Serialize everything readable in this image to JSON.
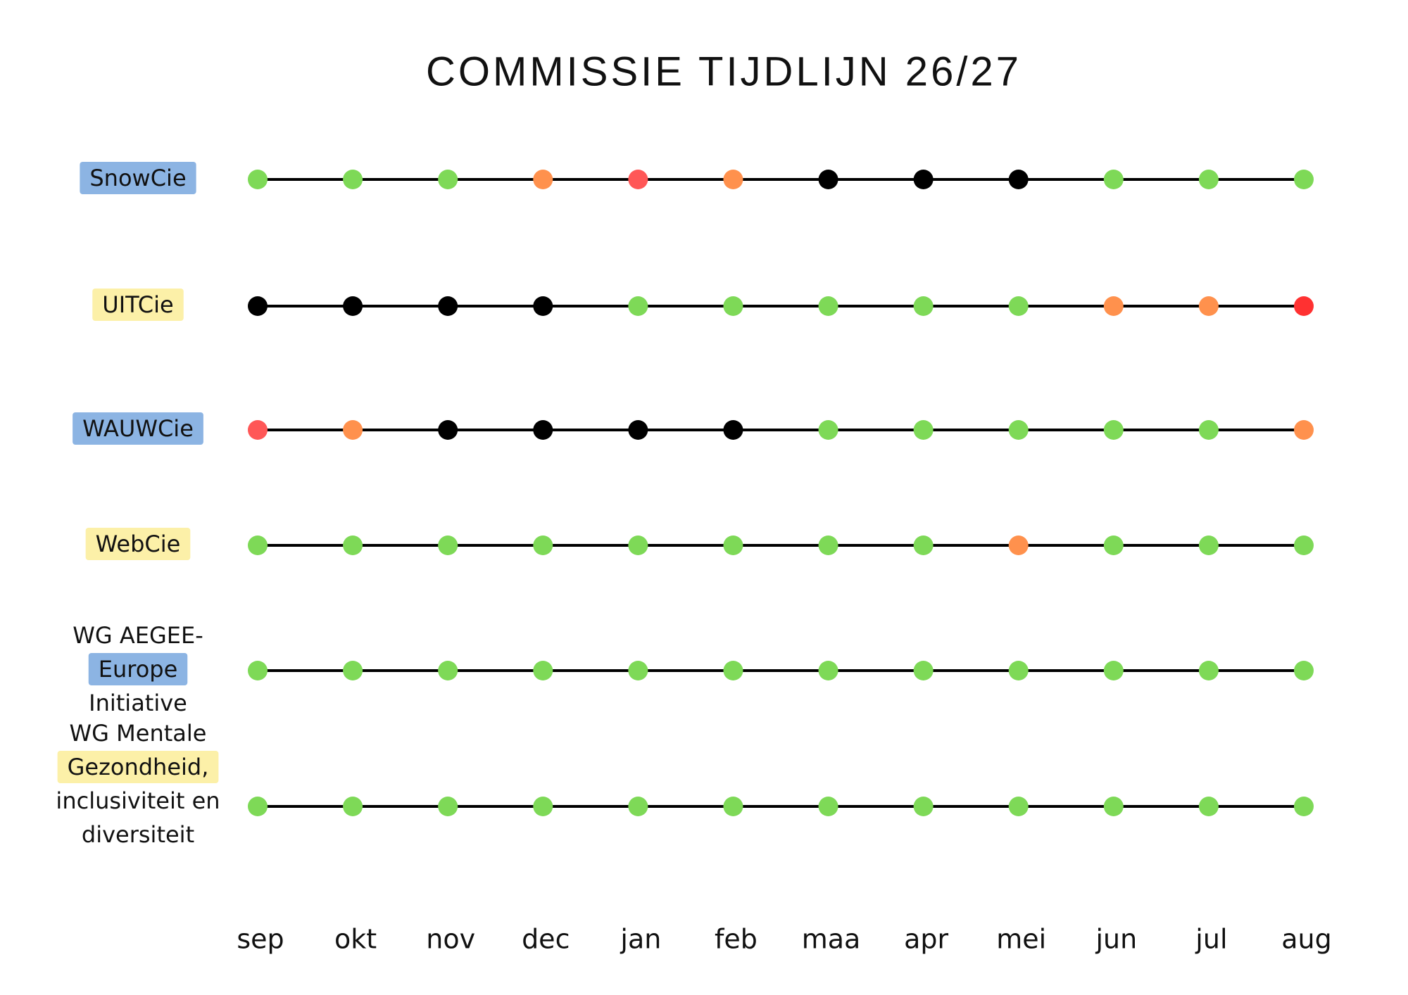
{
  "title": "COMMISSIE TIJDLIJN 26/27",
  "months": [
    "sep",
    "okt",
    "nov",
    "dec",
    "jan",
    "feb",
    "maa",
    "apr",
    "mei",
    "jun",
    "jul",
    "aug"
  ],
  "rows": [
    {
      "label_lines": [
        "SnowCie"
      ],
      "highlight": "#8cb4e3",
      "dots": [
        "#7ed957",
        "#7ed957",
        "#7ed957",
        "#ff914d",
        "#ff5757",
        "#ff914d",
        "#000000",
        "#000000",
        "#000000",
        "#7ed957",
        "#7ed957",
        "#7ed957"
      ]
    },
    {
      "label_lines": [
        "UITCie"
      ],
      "highlight": "#fcf0a8",
      "dots": [
        "#000000",
        "#000000",
        "#000000",
        "#000000",
        "#7ed957",
        "#7ed957",
        "#7ed957",
        "#7ed957",
        "#7ed957",
        "#ff914d",
        "#ff914d",
        "#ff3131"
      ]
    },
    {
      "label_lines": [
        "WAUWCie"
      ],
      "highlight": "#8cb4e3",
      "dots": [
        "#ff5757",
        "#ff914d",
        "#000000",
        "#000000",
        "#000000",
        "#000000",
        "#7ed957",
        "#7ed957",
        "#7ed957",
        "#7ed957",
        "#7ed957",
        "#ff914d"
      ]
    },
    {
      "label_lines": [
        "WebCie"
      ],
      "highlight": "#fcf0a8",
      "dots": [
        "#7ed957",
        "#7ed957",
        "#7ed957",
        "#7ed957",
        "#7ed957",
        "#7ed957",
        "#7ed957",
        "#7ed957",
        "#ff914d",
        "#7ed957",
        "#7ed957",
        "#7ed957"
      ]
    },
    {
      "label_lines": [
        "WG AEGEE-",
        "Europe",
        "Initiative"
      ],
      "highlight": "#8cb4e3",
      "dots": [
        "#7ed957",
        "#7ed957",
        "#7ed957",
        "#7ed957",
        "#7ed957",
        "#7ed957",
        "#7ed957",
        "#7ed957",
        "#7ed957",
        "#7ed957",
        "#7ed957",
        "#7ed957"
      ]
    },
    {
      "label_lines": [
        "WG Mentale",
        "Gezondheid,",
        "inclusiviteit en",
        "diversiteit"
      ],
      "highlight": "#fcf0a8",
      "dots": [
        "#7ed957",
        "#7ed957",
        "#7ed957",
        "#7ed957",
        "#7ed957",
        "#7ed957",
        "#7ed957",
        "#7ed957",
        "#7ed957",
        "#7ed957",
        "#7ed957",
        "#7ed957"
      ]
    }
  ]
}
